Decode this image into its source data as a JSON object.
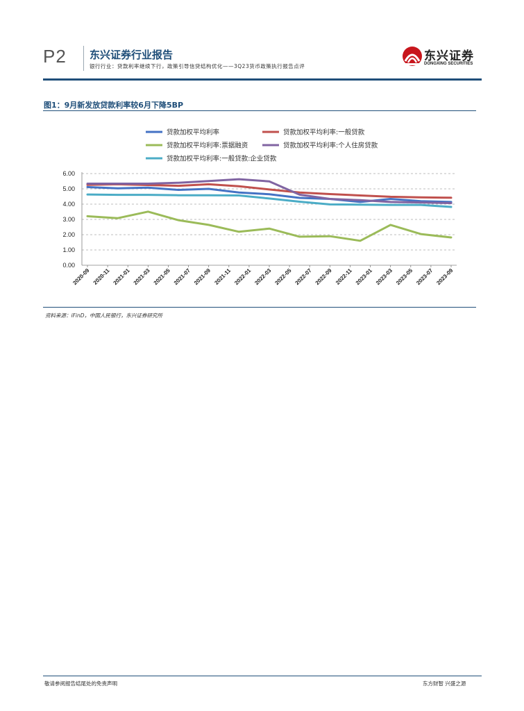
{
  "header": {
    "page_no": "P2",
    "report_title": "东兴证券行业报告",
    "subtitle": "银行行业：贷款利率继续下行，政策引导信贷结构优化——3Q23货币政策执行报告点评",
    "logo_cn": "东兴证券",
    "logo_en": "DONGXING SECURITIES"
  },
  "figure": {
    "title": "图1：9月新发放贷款利率较6月下降5BP",
    "source": "资料来源：iFinD，中国人民银行，东兴证券研究所"
  },
  "footer": {
    "left": "敬请参阅报告结尾处的免责声明",
    "right": "东方财智 兴盛之源"
  },
  "chart_data": {
    "type": "line",
    "title": "",
    "xlabel": "",
    "ylabel": "",
    "ylim": [
      0,
      6
    ],
    "yticks": [
      "0.00",
      "1.00",
      "2.00",
      "3.00",
      "4.00",
      "5.00",
      "6.00"
    ],
    "grid": "horizontal dashed",
    "legend_position": "top",
    "x": [
      "2020-09",
      "2020-12",
      "2021-03",
      "2021-06",
      "2021-09",
      "2021-12",
      "2022-03",
      "2022-06",
      "2022-09",
      "2022-12",
      "2023-03",
      "2023-06",
      "2023-09"
    ],
    "x_ticks": [
      "2020-09",
      "2020-11",
      "2021-01",
      "2021-03",
      "2021-05",
      "2021-07",
      "2021-09",
      "2021-11",
      "2022-01",
      "2022-03",
      "2022-05",
      "2022-07",
      "2022-09",
      "2022-11",
      "2023-01",
      "2023-03",
      "2023-05",
      "2023-07",
      "2023-09"
    ],
    "series": [
      {
        "name": "贷款加权平均利率",
        "color": "#4472C4",
        "values": [
          5.12,
          5.03,
          5.08,
          4.93,
          5.0,
          4.76,
          4.65,
          4.41,
          4.34,
          4.14,
          4.34,
          4.19,
          4.14
        ]
      },
      {
        "name": "贷款加权平均利率:一般贷款",
        "color": "#C0504D",
        "values": [
          5.26,
          5.3,
          5.25,
          5.2,
          5.3,
          5.17,
          4.96,
          4.76,
          4.66,
          4.57,
          4.48,
          4.44,
          4.42
        ]
      },
      {
        "name": "贷款加权平均利率:票据融资",
        "color": "#9BBB59",
        "values": [
          3.21,
          3.08,
          3.51,
          2.95,
          2.64,
          2.19,
          2.4,
          1.87,
          1.9,
          1.6,
          2.64,
          2.04,
          1.82
        ]
      },
      {
        "name": "贷款加权平均利率:个人住房贷款",
        "color": "#8064A2",
        "values": [
          5.34,
          5.34,
          5.34,
          5.4,
          5.51,
          5.63,
          5.49,
          4.62,
          4.34,
          4.26,
          4.14,
          4.11,
          4.07
        ]
      },
      {
        "name": "贷款加权平均利率:一般贷款:企业贷款",
        "color": "#4BACC6",
        "values": [
          4.63,
          4.61,
          4.61,
          4.58,
          4.58,
          4.57,
          4.37,
          4.16,
          3.98,
          3.97,
          3.95,
          3.95,
          3.82
        ]
      }
    ]
  }
}
